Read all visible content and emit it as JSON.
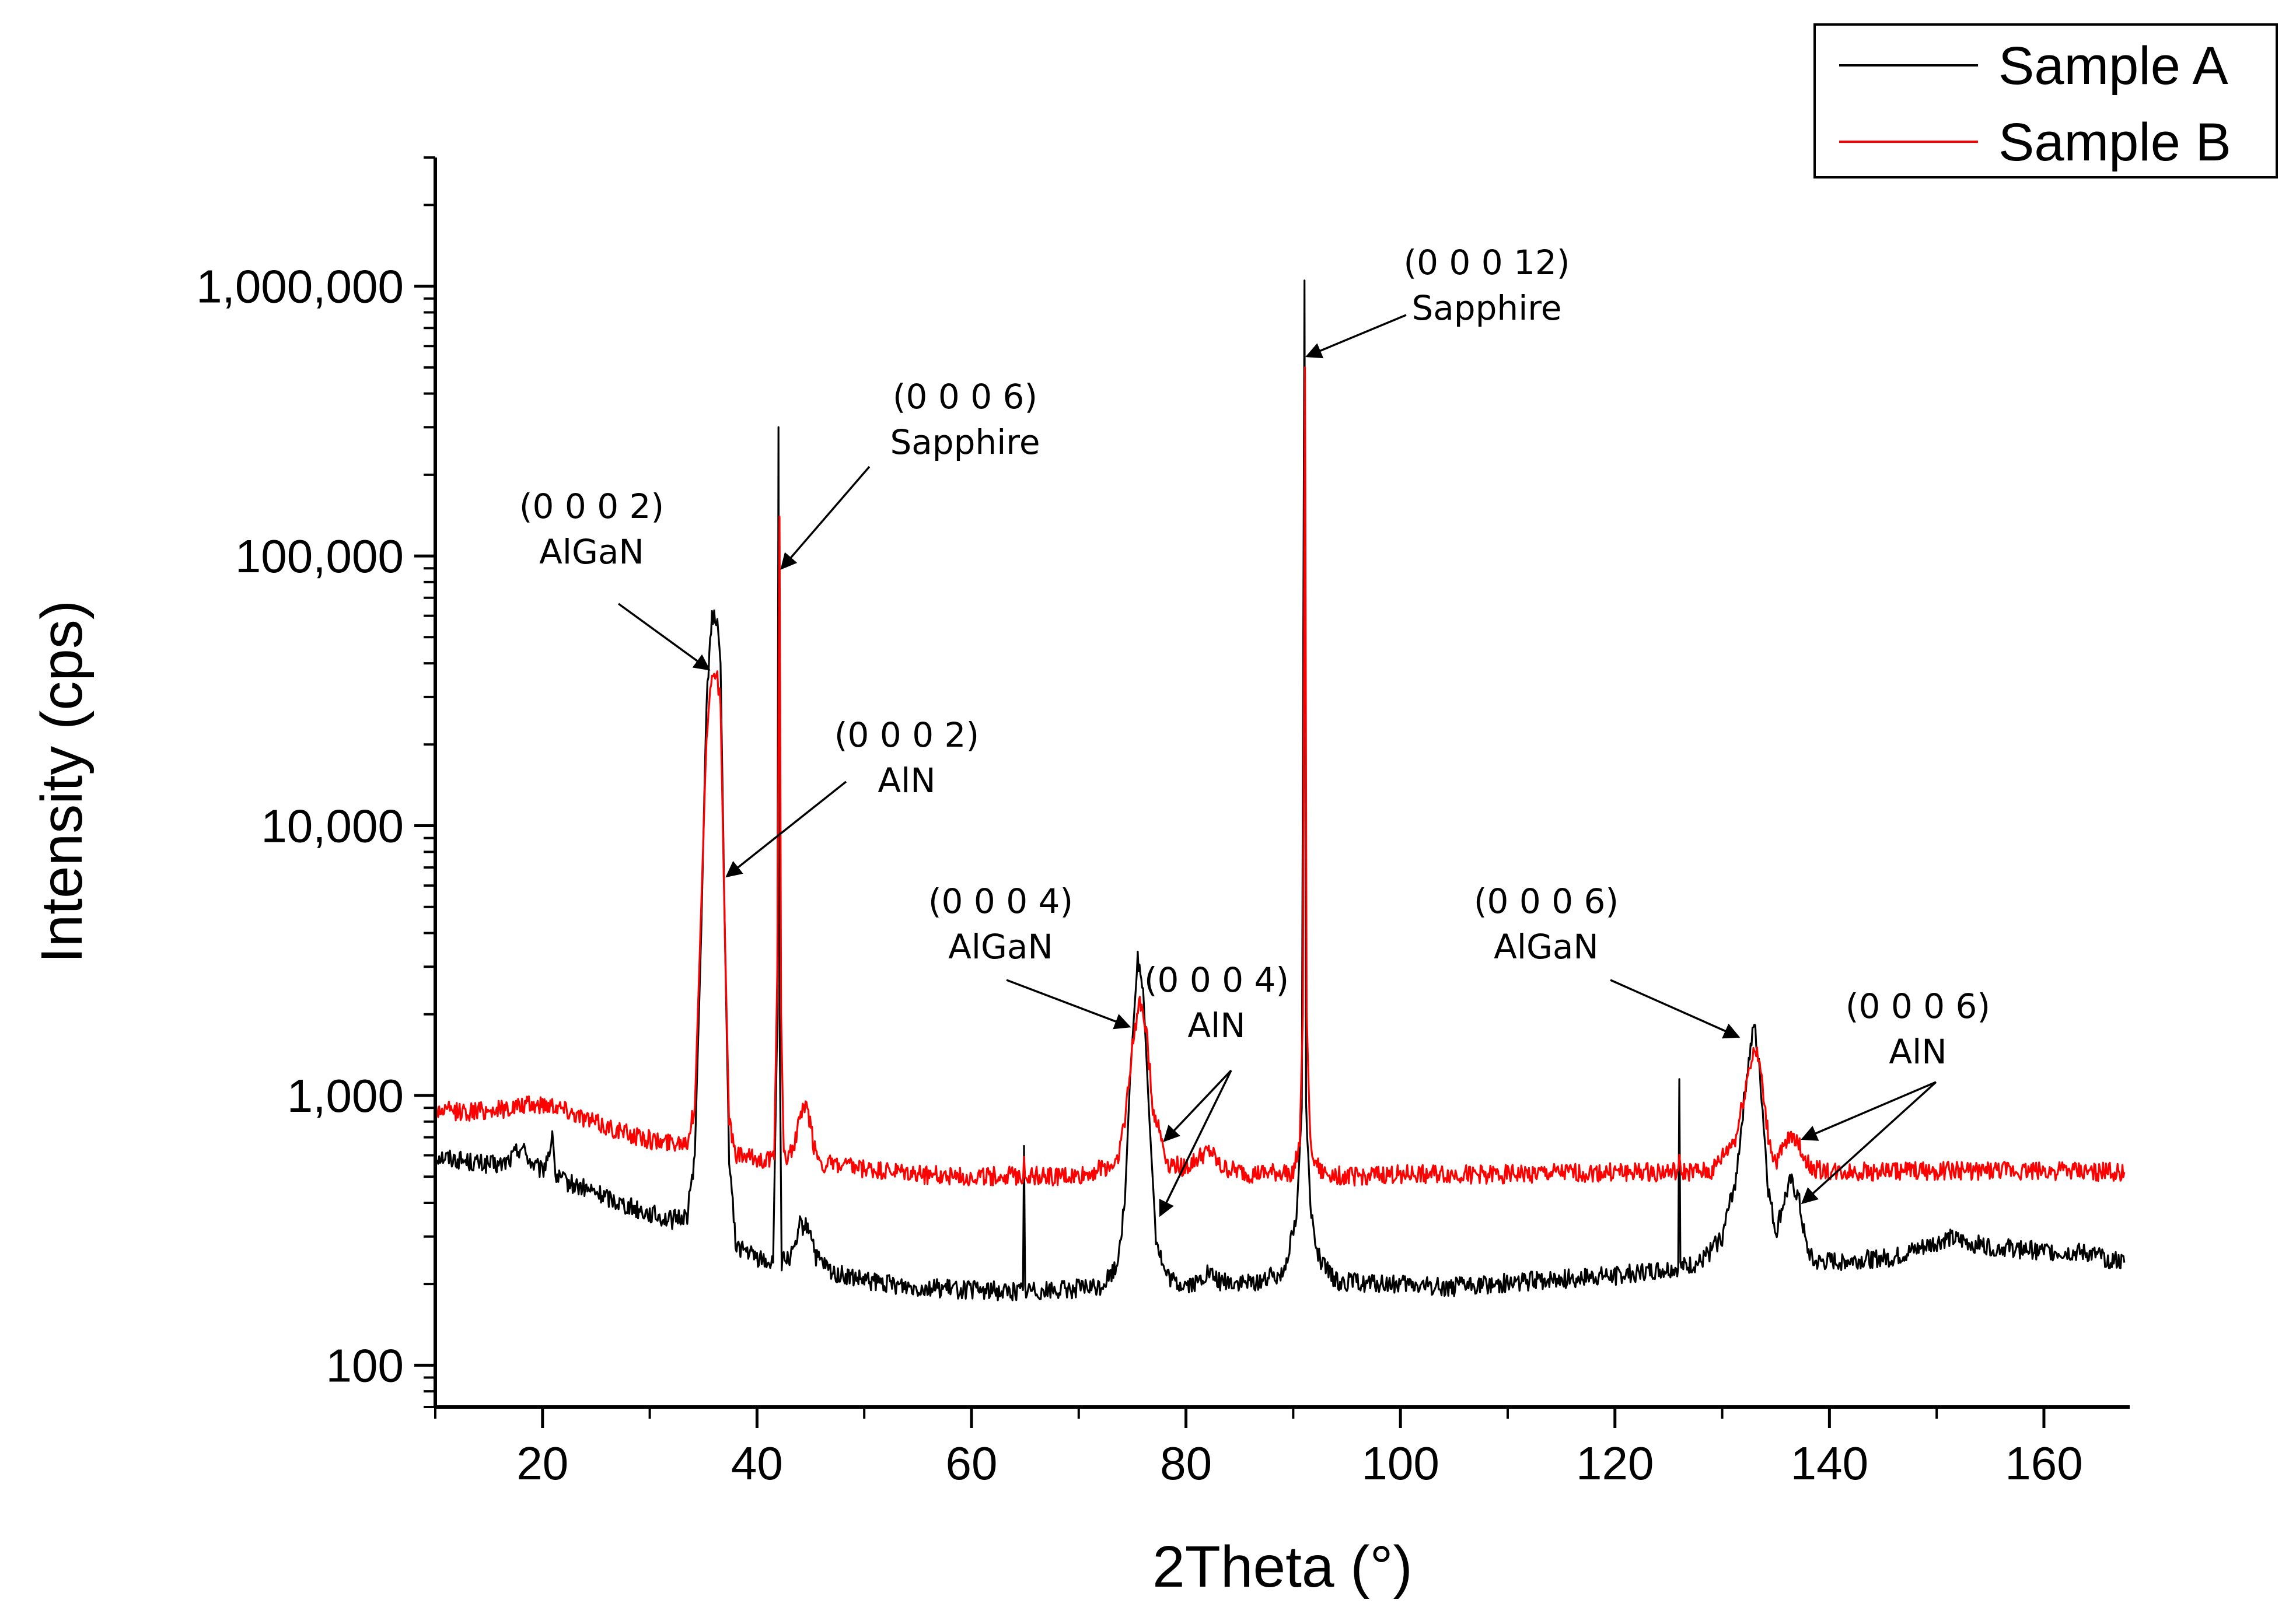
{
  "chart_data": {
    "type": "line",
    "title": "",
    "xlabel": "2Theta (°)",
    "ylabel": "Intensity (cps)",
    "xlim": [
      10,
      168
    ],
    "ylim": [
      70,
      3000000
    ],
    "yscale": "log",
    "x_ticks": [
      20,
      40,
      60,
      80,
      100,
      120,
      140,
      160
    ],
    "x_tick_labels": [
      "20",
      "40",
      "60",
      "80",
      "100",
      "120",
      "140",
      "160"
    ],
    "y_ticks": [
      100,
      1000,
      10000,
      100000,
      1000000
    ],
    "y_tick_labels": [
      "100",
      "1,000",
      "10,000",
      "100,000",
      "1,000,000"
    ],
    "grid": false,
    "legend_position": "top-right",
    "series": [
      {
        "name": "Sample A",
        "color": "#000000",
        "points": [
          [
            10,
            600
          ],
          [
            12,
            580
          ],
          [
            14,
            560
          ],
          [
            16,
            550
          ],
          [
            17,
            580
          ],
          [
            18,
            650
          ],
          [
            19,
            560
          ],
          [
            20,
            520
          ],
          [
            21,
            700
          ],
          [
            21.2,
            500
          ],
          [
            22,
            480
          ],
          [
            24,
            450
          ],
          [
            26,
            420
          ],
          [
            28,
            390
          ],
          [
            30,
            365
          ],
          [
            32,
            345
          ],
          [
            33.5,
            360
          ],
          [
            34.2,
            600
          ],
          [
            34.8,
            4000
          ],
          [
            35.3,
            30000
          ],
          [
            35.8,
            58000
          ],
          [
            36.2,
            60000
          ],
          [
            36.6,
            40000
          ],
          [
            37,
            4000
          ],
          [
            37.4,
            600
          ],
          [
            38,
            280
          ],
          [
            40,
            250
          ],
          [
            41.5,
            240
          ],
          [
            41.9,
            2000
          ],
          [
            42,
            300000
          ],
          [
            42.1,
            2000
          ],
          [
            42.3,
            240
          ],
          [
            43.5,
            260
          ],
          [
            44,
            330
          ],
          [
            45,
            320
          ],
          [
            45.5,
            250
          ],
          [
            47,
            220
          ],
          [
            50,
            205
          ],
          [
            55,
            195
          ],
          [
            60,
            190
          ],
          [
            64,
            188
          ],
          [
            64.8,
            190
          ],
          [
            64.9,
            650
          ],
          [
            65,
            190
          ],
          [
            68,
            190
          ],
          [
            72,
            195
          ],
          [
            73.5,
            230
          ],
          [
            74.3,
            400
          ],
          [
            74.8,
            1200
          ],
          [
            75.5,
            3200
          ],
          [
            76,
            2500
          ],
          [
            76.6,
            800
          ],
          [
            77.2,
            300
          ],
          [
            78,
            220
          ],
          [
            79,
            200
          ],
          [
            81,
            200
          ],
          [
            82,
            220
          ],
          [
            83,
            205
          ],
          [
            86,
            200
          ],
          [
            89,
            220
          ],
          [
            90.3,
            350
          ],
          [
            90.8,
            900
          ],
          [
            91.05,
            1050000
          ],
          [
            91.2,
            900
          ],
          [
            91.6,
            380
          ],
          [
            92.5,
            240
          ],
          [
            94,
            205
          ],
          [
            98,
            200
          ],
          [
            105,
            195
          ],
          [
            112,
            205
          ],
          [
            120,
            215
          ],
          [
            124,
            225
          ],
          [
            125.9,
            230
          ],
          [
            126,
            1150
          ],
          [
            126.1,
            230
          ],
          [
            128,
            240
          ],
          [
            130,
            300
          ],
          [
            131.3,
            500
          ],
          [
            132.3,
            1200
          ],
          [
            133,
            1850
          ],
          [
            133.6,
            1100
          ],
          [
            134.3,
            450
          ],
          [
            135,
            310
          ],
          [
            135.7,
            400
          ],
          [
            136.4,
            480
          ],
          [
            137.1,
            420
          ],
          [
            137.8,
            280
          ],
          [
            138.5,
            240
          ],
          [
            142,
            245
          ],
          [
            146,
            250
          ],
          [
            151,
            295
          ],
          [
            155,
            275
          ],
          [
            160,
            265
          ],
          [
            164,
            260
          ],
          [
            167.5,
            240
          ]
        ]
      },
      {
        "name": "Sample B",
        "color": "#ff0000",
        "points": [
          [
            10,
            880
          ],
          [
            13,
            870
          ],
          [
            16,
            890
          ],
          [
            19,
            920
          ],
          [
            21,
            930
          ],
          [
            23,
            860
          ],
          [
            25,
            790
          ],
          [
            28,
            720
          ],
          [
            31,
            670
          ],
          [
            33.5,
            680
          ],
          [
            34.2,
            900
          ],
          [
            34.8,
            5000
          ],
          [
            35.3,
            22000
          ],
          [
            35.8,
            37000
          ],
          [
            36.2,
            38000
          ],
          [
            36.6,
            28000
          ],
          [
            37,
            4000
          ],
          [
            37.4,
            800
          ],
          [
            38,
            600
          ],
          [
            40,
            580
          ],
          [
            41.6,
            580
          ],
          [
            41.9,
            3000
          ],
          [
            42.1,
            140000
          ],
          [
            42.25,
            2000
          ],
          [
            42.5,
            580
          ],
          [
            43.5,
            650
          ],
          [
            44,
            850
          ],
          [
            44.7,
            900
          ],
          [
            45.3,
            650
          ],
          [
            46,
            560
          ],
          [
            50,
            530
          ],
          [
            55,
            510
          ],
          [
            60,
            500
          ],
          [
            64.8,
            505
          ],
          [
            64.9,
            600
          ],
          [
            65,
            505
          ],
          [
            70,
            500
          ],
          [
            73.5,
            560
          ],
          [
            74.3,
            800
          ],
          [
            75,
            1500
          ],
          [
            75.7,
            2300
          ],
          [
            76.3,
            1800
          ],
          [
            76.9,
            900
          ],
          [
            77.6,
            720
          ],
          [
            78.3,
            560
          ],
          [
            80,
            540
          ],
          [
            81.5,
            600
          ],
          [
            82.3,
            620
          ],
          [
            83.2,
            540
          ],
          [
            86,
            510
          ],
          [
            90,
            520
          ],
          [
            90.6,
            650
          ],
          [
            90.9,
            2000
          ],
          [
            91.1,
            500000
          ],
          [
            91.25,
            2000
          ],
          [
            91.6,
            650
          ],
          [
            92.5,
            520
          ],
          [
            95,
            500
          ],
          [
            100,
            510
          ],
          [
            110,
            510
          ],
          [
            120,
            520
          ],
          [
            125.9,
            520
          ],
          [
            126,
            560
          ],
          [
            126.1,
            520
          ],
          [
            129,
            520
          ],
          [
            131.3,
            700
          ],
          [
            132.4,
            1200
          ],
          [
            133,
            1500
          ],
          [
            133.5,
            1300
          ],
          [
            134.3,
            700
          ],
          [
            135,
            560
          ],
          [
            135.8,
            640
          ],
          [
            136.6,
            730
          ],
          [
            137.4,
            620
          ],
          [
            138.2,
            540
          ],
          [
            140,
            520
          ],
          [
            150,
            525
          ],
          [
            160,
            525
          ],
          [
            167.5,
            520
          ]
        ]
      }
    ],
    "annotations": [
      {
        "line1": "(0 0 0 2)",
        "line2": "AlGaN",
        "target_x": 35.5,
        "target_y": 38000
      },
      {
        "line1": "(0 0 0 6)",
        "line2": "Sapphire",
        "target_x": 42.3,
        "target_y": 90000
      },
      {
        "line1": "(0 0 0 2)",
        "line2": "AlN",
        "target_x": 37.2,
        "target_y": 6500
      },
      {
        "line1": "(0 0 0 12)",
        "line2": "Sapphire",
        "target_x": 91.3,
        "target_y": 550000
      },
      {
        "line1": "(0 0 0 4)",
        "line2": "AlGaN",
        "target_x": 74.7,
        "target_y": 1800
      },
      {
        "line1": "(0 0 0 4)",
        "line2": "AlN",
        "target_x": 78,
        "target_y": 680,
        "second_target_x": 77.6,
        "second_target_y": 360
      },
      {
        "line1": "(0 0 0 6)",
        "line2": "AlGaN",
        "target_x": 131.5,
        "target_y": 1650
      },
      {
        "line1": "(0 0 0 6)",
        "line2": "AlN",
        "target_x": 137.5,
        "target_y": 690,
        "second_target_x": 137.5,
        "second_target_y": 400
      }
    ]
  }
}
